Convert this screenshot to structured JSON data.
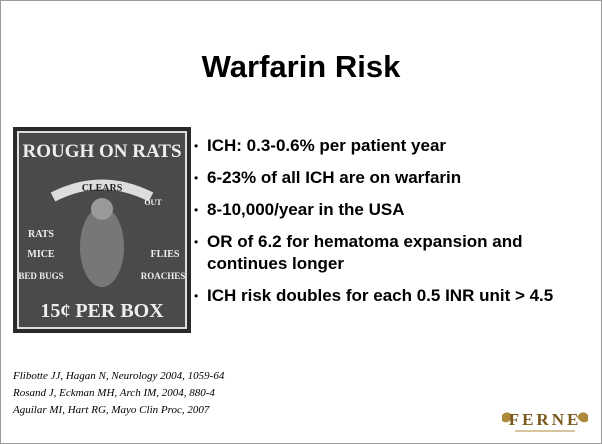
{
  "title": "Warfarin Risk",
  "image": {
    "texts": [
      "ROUGH ON RATS",
      "CLEARS",
      "OUT",
      "RATS",
      "MICE",
      "BED BUGS",
      "FLIES",
      "ROACHES",
      "15¢ PER BOX"
    ]
  },
  "bullets": [
    "ICH: 0.3-0.6% per patient year",
    "6-23% of all ICH are on warfarin",
    "8-10,000/year in the USA",
    "OR of 6.2 for hematoma expansion and continues longer",
    "ICH risk doubles for each 0.5 INR unit > 4.5"
  ],
  "references": [
    "Flibotte JJ, Hagan N, Neurology 2004, 1059-64",
    "Rosand J, Eckman MH, Arch IM, 2004, 880-4",
    "Aguilar MI, Hart RG, Mayo Clin Proc, 2007"
  ],
  "logo": "FERNE"
}
